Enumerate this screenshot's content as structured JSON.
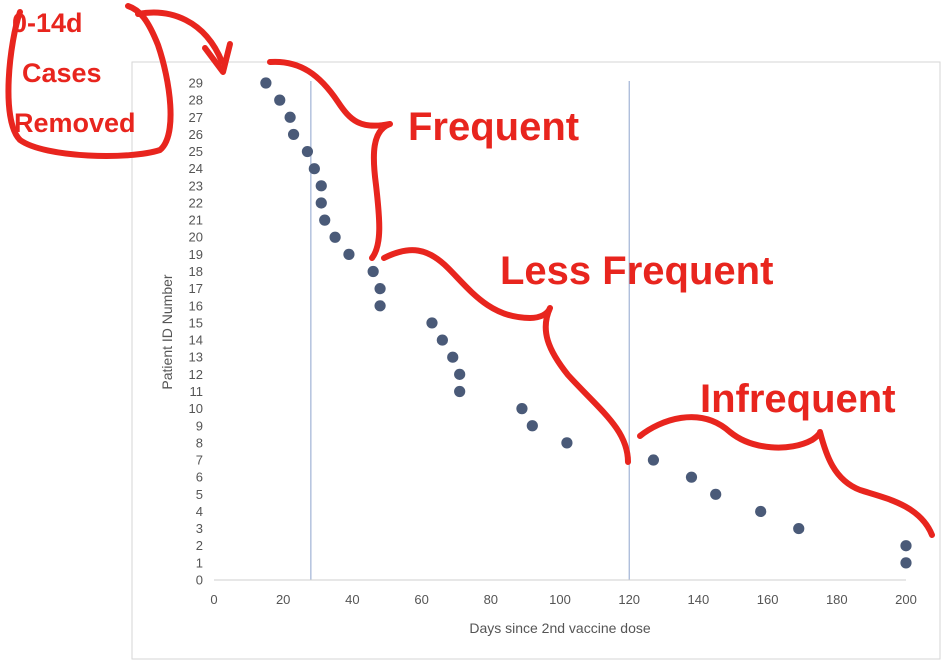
{
  "chart_data": {
    "type": "scatter",
    "xlabel": "Days since 2nd vaccine dose",
    "ylabel": "Patient ID Number",
    "xlim": [
      0,
      200
    ],
    "ylim": [
      0,
      29
    ],
    "x_ticks": [
      "0",
      "20",
      "40",
      "60",
      "80",
      "100",
      "120",
      "140",
      "160",
      "180",
      "200"
    ],
    "y_ticks": [
      "0",
      "1",
      "2",
      "3",
      "4",
      "5",
      "6",
      "7",
      "8",
      "9",
      "10",
      "11",
      "12",
      "13",
      "14",
      "15",
      "16",
      "17",
      "18",
      "19",
      "20",
      "21",
      "22",
      "23",
      "24",
      "25",
      "26",
      "27",
      "28",
      "29"
    ],
    "vertical_lines_x": [
      28,
      120
    ],
    "grid": false,
    "marker_color": "#4a5a78",
    "series": [
      {
        "points": [
          {
            "x": 15,
            "y": 29
          },
          {
            "x": 19,
            "y": 28
          },
          {
            "x": 22,
            "y": 27
          },
          {
            "x": 23,
            "y": 26
          },
          {
            "x": 27,
            "y": 25
          },
          {
            "x": 29,
            "y": 24
          },
          {
            "x": 31,
            "y": 23
          },
          {
            "x": 31,
            "y": 22
          },
          {
            "x": 32,
            "y": 21
          },
          {
            "x": 35,
            "y": 20
          },
          {
            "x": 39,
            "y": 19
          },
          {
            "x": 46,
            "y": 18
          },
          {
            "x": 48,
            "y": 17
          },
          {
            "x": 48,
            "y": 16
          },
          {
            "x": 63,
            "y": 15
          },
          {
            "x": 66,
            "y": 14
          },
          {
            "x": 69,
            "y": 13
          },
          {
            "x": 71,
            "y": 12
          },
          {
            "x": 71,
            "y": 11
          },
          {
            "x": 89,
            "y": 10
          },
          {
            "x": 92,
            "y": 9
          },
          {
            "x": 102,
            "y": 8
          },
          {
            "x": 127,
            "y": 7
          },
          {
            "x": 138,
            "y": 6
          },
          {
            "x": 145,
            "y": 5
          },
          {
            "x": 158,
            "y": 4
          },
          {
            "x": 169,
            "y": 3
          },
          {
            "x": 200,
            "y": 2
          },
          {
            "x": 200,
            "y": 1
          }
        ]
      }
    ]
  },
  "annotations": {
    "color": "#e8251e",
    "removed_note": [
      "0-14d",
      "Cases",
      "Removed"
    ],
    "frequent": "Frequent",
    "less_frequent": "Less Frequent",
    "infrequent": "Infrequent"
  }
}
